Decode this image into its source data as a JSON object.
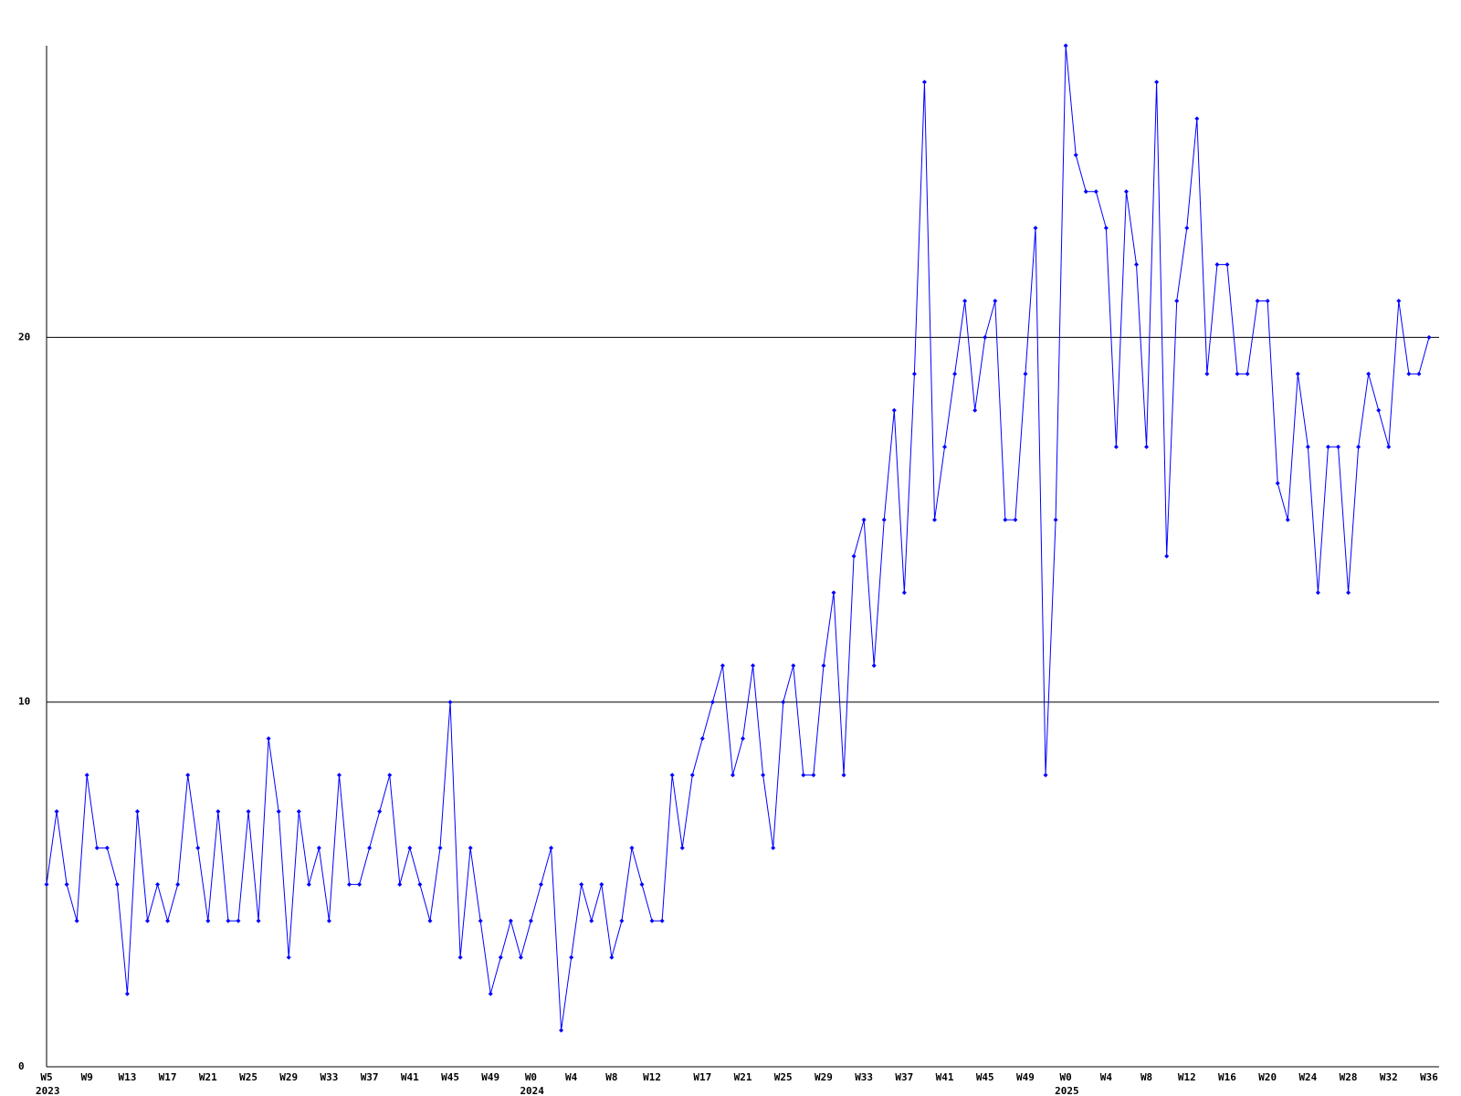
{
  "chart_data": {
    "type": "line",
    "categories": [
      "W5",
      null,
      null,
      null,
      "W9",
      null,
      null,
      null,
      "W13",
      null,
      null,
      null,
      "W17",
      null,
      null,
      null,
      "W21",
      null,
      null,
      null,
      "W25",
      null,
      null,
      null,
      "W29",
      null,
      null,
      null,
      "W33",
      null,
      null,
      null,
      "W37",
      null,
      null,
      null,
      "W41",
      null,
      null,
      null,
      "W45",
      null,
      null,
      null,
      "W49",
      null,
      null,
      null,
      "W0",
      null,
      null,
      null,
      "W4",
      null,
      null,
      null,
      "W8",
      null,
      null,
      null,
      "W12",
      null,
      null,
      null,
      null,
      "W17",
      null,
      null,
      null,
      "W21",
      null,
      null,
      null,
      "W25",
      null,
      null,
      null,
      "W29",
      null,
      null,
      null,
      "W33",
      null,
      null,
      null,
      "W37",
      null,
      null,
      null,
      "W41",
      null,
      null,
      null,
      "W45",
      null,
      null,
      null,
      "W49",
      null,
      null,
      null,
      "W0",
      null,
      null,
      null,
      "W4",
      null,
      null,
      null,
      "W8",
      null,
      null,
      null,
      "W12",
      null,
      null,
      null,
      "W16",
      null,
      null,
      null,
      "W20",
      null,
      null,
      null,
      "W24",
      null,
      null,
      null,
      "W28",
      null,
      null,
      null,
      "W32",
      null,
      null,
      null,
      "W36"
    ],
    "year_labels": [
      {
        "index": 0,
        "label": "2023"
      },
      {
        "index": 48,
        "label": "2024"
      },
      {
        "index": 101,
        "label": "2025"
      }
    ],
    "series": [
      {
        "color": "#0000ff",
        "values": [
          5,
          7,
          5,
          4,
          8,
          6,
          6,
          5,
          2,
          7,
          4,
          5,
          4,
          5,
          8,
          6,
          4,
          7,
          4,
          4,
          7,
          4,
          9,
          7,
          3,
          7,
          5,
          6,
          4,
          8,
          5,
          5,
          6,
          7,
          8,
          5,
          6,
          5,
          4,
          6,
          10,
          3,
          6,
          4,
          2,
          3,
          4,
          3,
          4,
          5,
          6,
          1,
          3,
          5,
          4,
          5,
          3,
          4,
          6,
          5,
          4,
          4,
          8,
          6,
          8,
          9,
          10,
          11,
          8,
          9,
          11,
          8,
          6,
          10,
          11,
          8,
          8,
          11,
          13,
          8,
          14,
          15,
          11,
          15,
          18,
          13,
          19,
          27,
          15,
          17,
          19,
          21,
          18,
          20,
          21,
          15,
          15,
          19,
          23,
          8,
          15,
          28,
          25,
          24,
          24,
          23,
          17,
          24,
          22,
          17,
          27,
          14,
          21,
          23,
          26,
          19,
          22,
          22,
          19,
          19,
          21,
          21,
          16,
          15,
          19,
          17,
          13,
          17,
          17,
          13,
          17,
          19,
          18,
          17,
          21,
          19,
          19,
          20
        ]
      }
    ],
    "ylim": [
      0,
      28
    ],
    "yticks": [
      0,
      10,
      20
    ],
    "grid": true
  }
}
